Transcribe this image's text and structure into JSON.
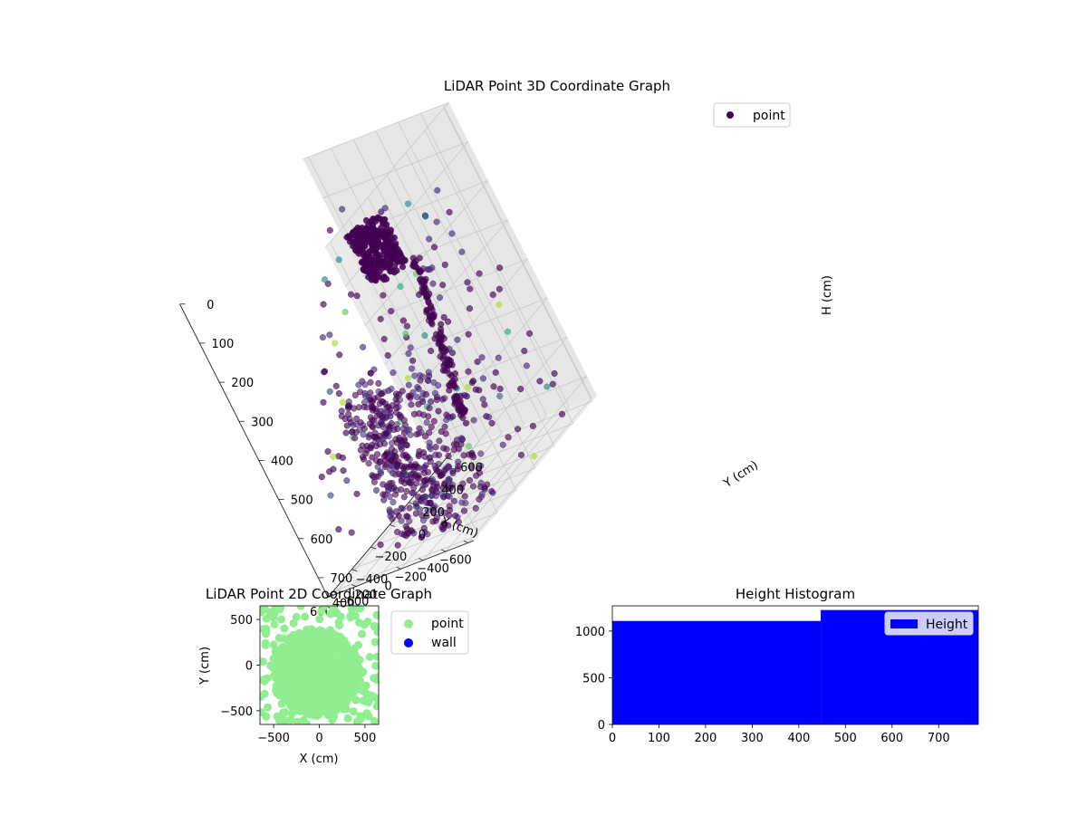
{
  "colors": {
    "scatter3d_series": "#440154",
    "scatter2d_point": "#90ee90",
    "scatter2d_wall": "#0000ff",
    "histogram": "#0000ff"
  },
  "chart_data": [
    {
      "type": "scatter",
      "projection": "3d",
      "title": "LiDAR Point 3D Coordinate Graph",
      "xlabel": "X (cm)",
      "ylabel": "Y (cm)",
      "zlabel": "H (cm)",
      "xticks": [
        "−600",
        "−400",
        "−200",
        "0",
        "200",
        "400",
        "600"
      ],
      "yticks": [
        "−600",
        "−400",
        "−200",
        "0",
        "200",
        "400",
        "600"
      ],
      "zticks": [
        "0",
        "100",
        "200",
        "300",
        "400",
        "500",
        "600",
        "700"
      ],
      "xlim": [
        -650,
        650
      ],
      "ylim": [
        -650,
        650
      ],
      "zlim": [
        0,
        750
      ],
      "z_inverted": true,
      "colormap": "viridis",
      "legend": [
        "point"
      ],
      "legend_position": "upper right",
      "grid": true
    },
    {
      "type": "scatter",
      "title": "LiDAR Point 2D Coordinate Graph",
      "xlabel": "X (cm)",
      "ylabel": "Y (cm)",
      "xticks": [
        "−500",
        "0",
        "500"
      ],
      "yticks": [
        "−500",
        "0",
        "500"
      ],
      "xlim": [
        -650,
        650
      ],
      "ylim": [
        -650,
        650
      ],
      "series": [
        {
          "name": "point",
          "color": "#90ee90"
        },
        {
          "name": "wall",
          "color": "#0000ff"
        }
      ],
      "legend_position": "outside right",
      "grid": false
    },
    {
      "type": "bar",
      "title": "Height Histogram",
      "legend": [
        "Height"
      ],
      "legend_position": "upper right",
      "xticks": [
        "0",
        "100",
        "200",
        "300",
        "400",
        "500",
        "600",
        "700"
      ],
      "yticks": [
        "0",
        "500",
        "1000"
      ],
      "xlim": [
        0,
        785
      ],
      "ylim": [
        0,
        1270
      ],
      "bins": [
        {
          "x0": 0,
          "x1": 447,
          "value": 1108
        },
        {
          "x0": 447,
          "x1": 785,
          "value": 1225
        }
      ],
      "grid": false
    }
  ]
}
